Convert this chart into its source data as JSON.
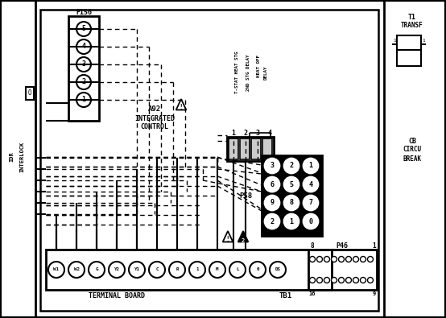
{
  "bg_color": "#ffffff",
  "p156_terminals": [
    "5",
    "4",
    "3",
    "2",
    "1"
  ],
  "p58_vals": [
    [
      "3",
      "2",
      "1"
    ],
    [
      "6",
      "5",
      "4"
    ],
    [
      "9",
      "8",
      "7"
    ],
    [
      "2",
      "1",
      "0"
    ]
  ],
  "terminal_symbols": [
    "W1",
    "W2",
    "G",
    "Y2",
    "Y1",
    "C",
    "R",
    "1",
    "M",
    "L",
    "0",
    "DS"
  ]
}
